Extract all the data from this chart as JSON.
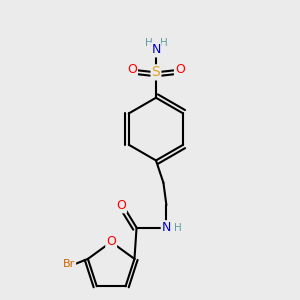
{
  "bg_color": "#ebebeb",
  "atom_colors": {
    "C": "#000000",
    "H": "#5f9ea0",
    "N": "#0000cd",
    "O": "#ff0000",
    "S": "#daa520",
    "Br": "#cc6600"
  },
  "bond_color": "#000000",
  "bond_width": 1.5,
  "dbo": 0.013,
  "fs": 8.5
}
